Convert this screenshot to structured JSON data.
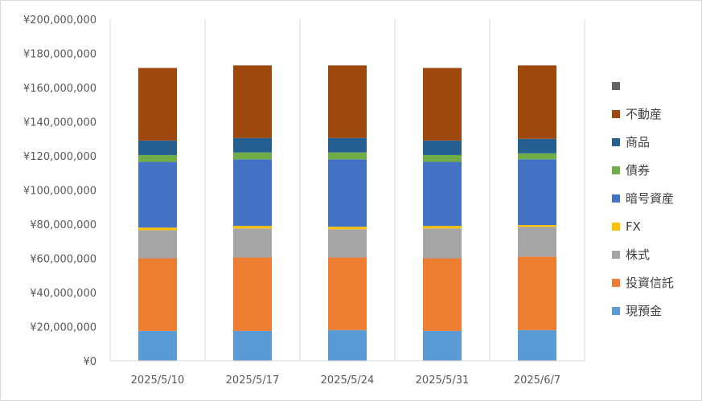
{
  "chart_data": {
    "type": "bar",
    "stacked": true,
    "categories": [
      "2025/5/10",
      "2025/5/17",
      "2025/5/24",
      "2025/5/31",
      "2025/6/7"
    ],
    "ylim": [
      0,
      200000000
    ],
    "yticks": [
      0,
      20000000,
      40000000,
      60000000,
      80000000,
      100000000,
      120000000,
      140000000,
      160000000,
      180000000,
      200000000
    ],
    "ytick_labels": [
      "¥0",
      "¥20,000,000",
      "¥40,000,000",
      "¥60,000,000",
      "¥80,000,000",
      "¥100,000,000",
      "¥120,000,000",
      "¥140,000,000",
      "¥160,000,000",
      "¥180,000,000",
      "¥200,000,000"
    ],
    "grid": "vertical-category-lines",
    "legend_position": "right",
    "series": [
      {
        "name": "現預金",
        "color": "#5b9bd5",
        "values": [
          17500000,
          17500000,
          18000000,
          17500000,
          18000000
        ]
      },
      {
        "name": "投資信託",
        "color": "#ed7d31",
        "values": [
          42500000,
          43000000,
          42500000,
          42500000,
          43000000
        ]
      },
      {
        "name": "株式",
        "color": "#a5a5a5",
        "values": [
          16500000,
          17000000,
          16500000,
          17500000,
          17500000
        ]
      },
      {
        "name": "FX",
        "color": "#ffc000",
        "values": [
          1500000,
          1500000,
          1500000,
          1500000,
          1000000
        ]
      },
      {
        "name": "暗号資産",
        "color": "#4472c4",
        "values": [
          38500000,
          39000000,
          39500000,
          37500000,
          38500000
        ]
      },
      {
        "name": "債券",
        "color": "#70ad47",
        "values": [
          4000000,
          4000000,
          4000000,
          4000000,
          3500000
        ]
      },
      {
        "name": "商品",
        "color": "#255e91",
        "values": [
          8500000,
          8500000,
          8500000,
          8500000,
          8500000
        ]
      },
      {
        "name": "不動産",
        "color": "#9e480e",
        "values": [
          42500000,
          42500000,
          42500000,
          42500000,
          43000000
        ]
      },
      {
        "name": "",
        "color": "#636363",
        "values": [
          0,
          0,
          0,
          0,
          0
        ]
      }
    ]
  }
}
